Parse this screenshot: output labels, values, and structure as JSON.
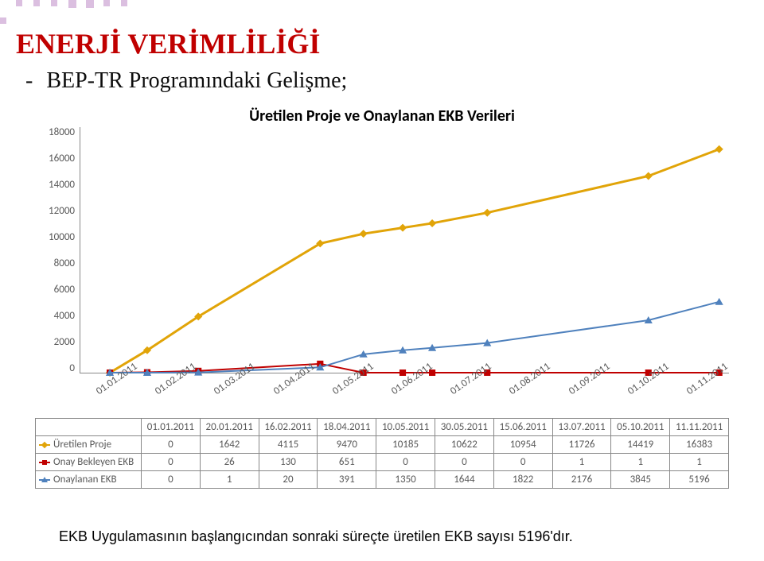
{
  "slide": {
    "title": "ENERJİ VERİMLİLİĞİ",
    "title_color": "#c00000",
    "title_fontsize": 36,
    "subtitle": "BEP-TR Programındaki Gelişme;",
    "subtitle_fontsize": 28,
    "footer": "EKB Uygulamasının başlangıcından sonraki süreçte üretilen EKB sayısı 5196'dır.",
    "footer_fontsize": 18,
    "decor_dot_color": "#dbbfe0"
  },
  "chart": {
    "type": "line",
    "title": "Üretilen Proje ve Onaylanan EKB Verileri",
    "title_fontsize": 20,
    "background_color": "#ffffff",
    "axis_color": "#888888",
    "label_color": "#595959",
    "label_fontsize": 13,
    "ylim": [
      0,
      18000
    ],
    "ytick_step": 2000,
    "y_ticks": [
      18000,
      16000,
      14000,
      12000,
      10000,
      8000,
      6000,
      4000,
      2000,
      0
    ],
    "x_categories_axis": [
      "01.01.2011",
      "01.02.2011",
      "01.03.2011",
      "01.04.2011",
      "01.05.2011",
      "01.06.2011",
      "01.07.2011",
      "01.08.2011",
      "01.09.2011",
      "01.10.2011",
      "01.11.2011"
    ],
    "x_categories_table": [
      "01.01.2011",
      "20.01.2011",
      "16.02.2011",
      "18.04.2011",
      "10.05.2011",
      "30.05.2011",
      "15.06.2011",
      "13.07.2011",
      "05.10.2011",
      "11.11.2011"
    ],
    "series": [
      {
        "name": "Üretilen Proje",
        "color": "#e1a408",
        "marker": "diamond",
        "line_width": 3,
        "values": [
          0,
          1642,
          4115,
          9470,
          10185,
          10622,
          10954,
          11726,
          14419,
          16383
        ]
      },
      {
        "name": "Onay Bekleyen EKB",
        "color": "#c00000",
        "marker": "square",
        "line_width": 2,
        "values": [
          0,
          26,
          130,
          651,
          0,
          0,
          0,
          1,
          1,
          1
        ]
      },
      {
        "name": "Onaylanan EKB",
        "color": "#4f81bd",
        "marker": "triangle",
        "line_width": 2,
        "values": [
          0,
          1,
          20,
          391,
          1350,
          1644,
          1822,
          2176,
          3845,
          5196
        ]
      }
    ]
  }
}
